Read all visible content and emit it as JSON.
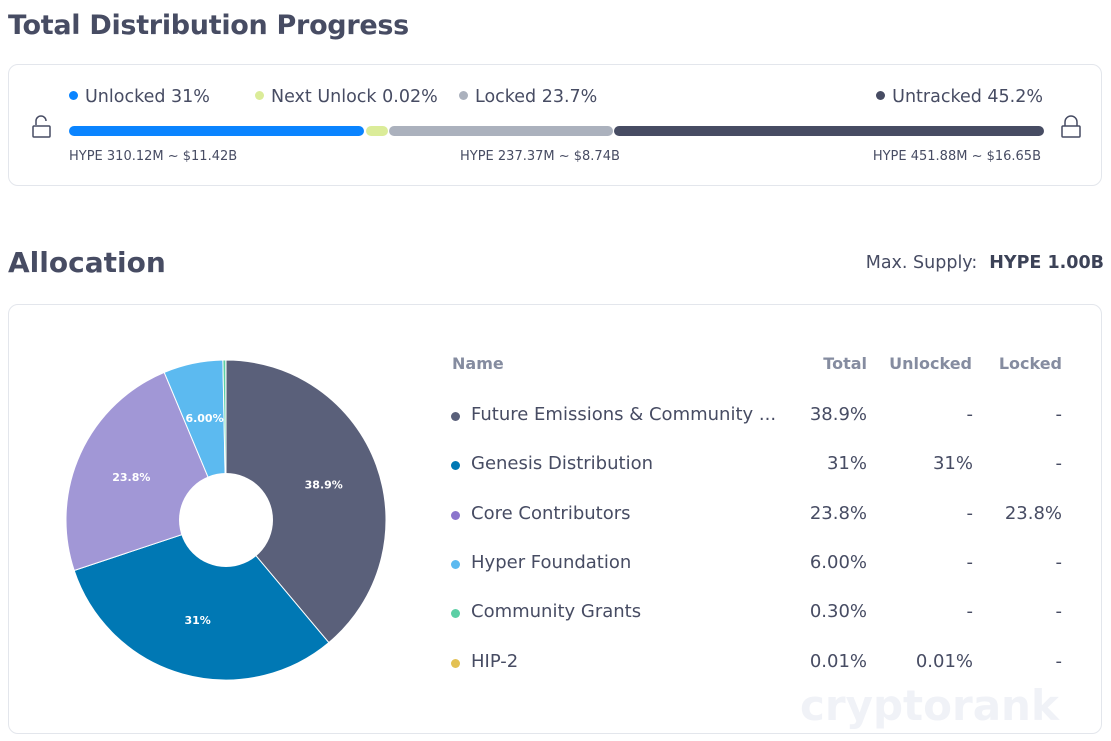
{
  "progress": {
    "title": "Total Distribution Progress",
    "legend": [
      {
        "label": "Unlocked 31%",
        "color": "#0a84ff"
      },
      {
        "label": "Next Unlock 0.02%",
        "color": "#dbec99"
      },
      {
        "label": "Locked 23.7%",
        "color": "#abb1bd"
      },
      {
        "label": "Untracked 45.2%",
        "color": "#474c63"
      }
    ],
    "segments": [
      {
        "name": "unlocked",
        "percent": 31,
        "color": "#0a84ff"
      },
      {
        "name": "next-unlock",
        "percent": 0.02,
        "color": "#dbec99"
      },
      {
        "name": "locked",
        "percent": 23.7,
        "color": "#abb1bd"
      },
      {
        "name": "untracked",
        "percent": 45.2,
        "color": "#474c63"
      }
    ],
    "amounts": {
      "unlocked": "HYPE 310.12M ~ $11.42B",
      "locked": "HYPE 237.37M ~ $8.74B",
      "untracked": "HYPE 451.88M ~ $16.65B"
    }
  },
  "allocation": {
    "title": "Allocation",
    "max_supply_label": "Max. Supply:",
    "max_supply_value": "HYPE 1.00B",
    "watermark": "cryptorank",
    "columns": {
      "name": "Name",
      "total": "Total",
      "unlocked": "Unlocked",
      "locked": "Locked"
    },
    "rows": [
      {
        "name": "Future Emissions & Community ...",
        "total": "38.9%",
        "unlocked": "-",
        "locked": "-",
        "color": "#5a607a"
      },
      {
        "name": "Genesis Distribution",
        "total": "31%",
        "unlocked": "31%",
        "locked": "-",
        "color": "#0078b4"
      },
      {
        "name": "Core Contributors",
        "total": "23.8%",
        "unlocked": "-",
        "locked": "23.8%",
        "color": "#8b75cc"
      },
      {
        "name": "Hyper Foundation",
        "total": "6.00%",
        "unlocked": "-",
        "locked": "-",
        "color": "#5cbaf0"
      },
      {
        "name": "Community Grants",
        "total": "0.30%",
        "unlocked": "-",
        "locked": "-",
        "color": "#5ccfa5"
      },
      {
        "name": "HIP-2",
        "total": "0.01%",
        "unlocked": "0.01%",
        "locked": "-",
        "color": "#e3c153"
      }
    ]
  },
  "chart_data": {
    "type": "pie",
    "categories": [
      "Future Emissions & Community ...",
      "Genesis Distribution",
      "Core Contributors",
      "Hyper Foundation",
      "Community Grants",
      "HIP-2"
    ],
    "values": [
      38.9,
      31,
      23.8,
      6.0,
      0.3,
      0.01
    ],
    "colors": [
      "#5a607a",
      "#0078b4",
      "#a197d6",
      "#5cbaf0",
      "#5ccfa5",
      "#e3c153"
    ],
    "data_labels": [
      "38.9%",
      "31%",
      "23.8%",
      "6.00%",
      "",
      ""
    ]
  }
}
